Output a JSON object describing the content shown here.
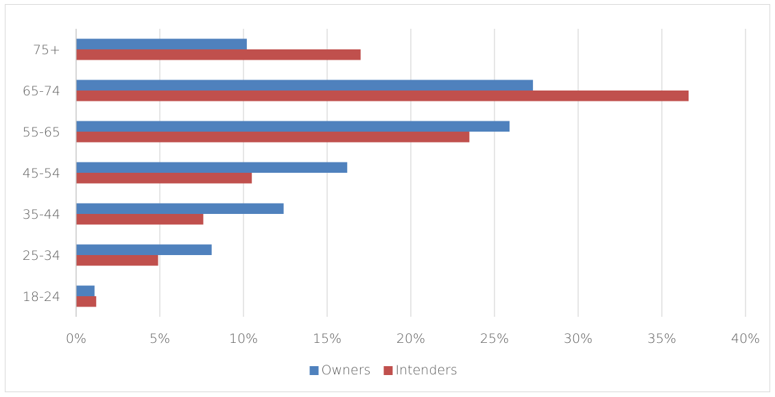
{
  "chart_data": {
    "type": "bar",
    "orientation": "horizontal",
    "categories": [
      "75+",
      "65-74",
      "55-65",
      "45-54",
      "35-44",
      "25-34",
      "18-24"
    ],
    "series": [
      {
        "name": "Owners",
        "color": "#4f81bd",
        "values": [
          10.2,
          27.3,
          25.9,
          16.2,
          12.4,
          8.1,
          1.1
        ]
      },
      {
        "name": "Intenders",
        "color": "#c0504d",
        "values": [
          17.0,
          36.6,
          23.5,
          10.5,
          7.6,
          4.9,
          1.2
        ]
      }
    ],
    "xlim": [
      0,
      40
    ],
    "x_ticks": [
      "0%",
      "5%",
      "10%",
      "15%",
      "20%",
      "25%",
      "30%",
      "35%",
      "40%"
    ],
    "grid": "vertical",
    "legend_position": "bottom",
    "title": "",
    "xlabel": "",
    "ylabel": ""
  }
}
